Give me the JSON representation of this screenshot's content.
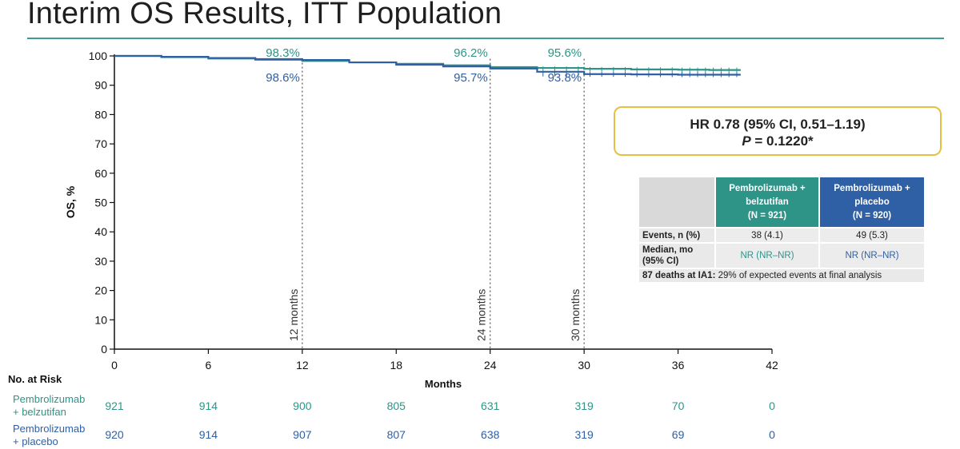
{
  "page": {
    "title": "Interim OS Results, ITT Population"
  },
  "colors": {
    "teal": "#2e9488",
    "blue": "#2f5fa4",
    "title_rule": "#3c9c93",
    "hr_border": "#e6c040"
  },
  "hr_box": {
    "line1": "HR 0.78 (95% CI, 0.51–1.19)",
    "p_label": "P",
    "p_value": " = 0.1220*"
  },
  "results_table": {
    "arm_a_header_line1": "Pembrolizumab +",
    "arm_a_header_line2": "belzutifan",
    "arm_a_header_line3": "(N = 921)",
    "arm_b_header_line1": "Pembrolizumab +",
    "arm_b_header_line2": "placebo",
    "arm_b_header_line3": "(N = 920)",
    "events_label": "Events, n (%)",
    "events_a": "38 (4.1)",
    "events_b": "49 (5.3)",
    "median_label_line1": "Median, mo",
    "median_label_line2": "(95% CI)",
    "median_a": "NR (NR–NR)",
    "median_b": "NR (NR–NR)",
    "deaths_bold": "87 deaths at IA1:",
    "deaths_text": " 29% of expected events at final analysis"
  },
  "risk_table": {
    "heading": "No. at Risk",
    "arm_a_label_line1": "Pembrolizumab",
    "arm_a_label_line2": "+ belzutifan",
    "arm_b_label_line1": "Pembrolizumab",
    "arm_b_label_line2": "+ placebo",
    "arm_a_counts": [
      "921",
      "914",
      "900",
      "805",
      "631",
      "319",
      "70",
      "0"
    ],
    "arm_b_counts": [
      "920",
      "914",
      "907",
      "807",
      "638",
      "319",
      "69",
      "0"
    ]
  },
  "chart_data": {
    "type": "line",
    "xlabel": "Months",
    "ylabel": "OS, %",
    "xlim": [
      0,
      42
    ],
    "ylim": [
      0,
      100
    ],
    "x_ticks": [
      "0",
      "6",
      "12",
      "18",
      "24",
      "30",
      "36",
      "42"
    ],
    "y_ticks": [
      "0",
      "10",
      "20",
      "30",
      "40",
      "50",
      "60",
      "70",
      "80",
      "90",
      "100"
    ],
    "grid": false,
    "landmarks": [
      {
        "month": 12,
        "label": "12 months"
      },
      {
        "month": 24,
        "label": "24 months"
      },
      {
        "month": 30,
        "label": "30 months"
      }
    ],
    "annotations": [
      {
        "month": 12,
        "text": "98.3%",
        "series": "teal"
      },
      {
        "month": 12,
        "text": "98.6%",
        "series": "blue"
      },
      {
        "month": 24,
        "text": "96.2%",
        "series": "teal"
      },
      {
        "month": 24,
        "text": "95.7%",
        "series": "blue"
      },
      {
        "month": 30,
        "text": "95.6%",
        "series": "teal"
      },
      {
        "month": 30,
        "text": "93.8%",
        "series": "blue"
      }
    ],
    "series": [
      {
        "color": "#2e9488",
        "x": [
          0,
          3,
          6,
          9,
          12,
          15,
          18,
          21,
          24,
          27,
          30,
          33,
          36,
          38,
          40
        ],
        "y": [
          100,
          99.6,
          99.1,
          98.7,
          98.3,
          97.8,
          97.3,
          96.8,
          96.2,
          95.9,
          95.6,
          95.4,
          95.3,
          95.2,
          95.2
        ]
      },
      {
        "color": "#2f5fa4",
        "x": [
          0,
          3,
          6,
          9,
          12,
          15,
          18,
          21,
          24,
          27,
          30,
          33,
          36,
          38,
          40
        ],
        "y": [
          100,
          99.7,
          99.3,
          98.9,
          98.6,
          97.8,
          97.0,
          96.4,
          95.7,
          94.6,
          93.8,
          93.7,
          93.6,
          93.6,
          93.6
        ]
      }
    ]
  }
}
